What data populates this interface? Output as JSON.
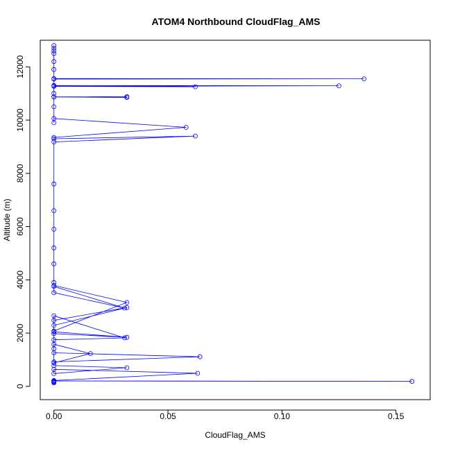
{
  "chart_data": {
    "type": "scatter",
    "title": "ATOM4 Northbound CloudFlag_AMS",
    "xlabel": "CloudFlag_AMS",
    "ylabel": "Altitude (m)",
    "xlim": [
      -0.006,
      0.165
    ],
    "ylim": [
      -500,
      13000
    ],
    "x_ticks": [
      0.0,
      0.05,
      0.1,
      0.15
    ],
    "x_tick_labels": [
      "0.00",
      "0.05",
      "0.10",
      "0.15"
    ],
    "y_ticks": [
      0,
      2000,
      4000,
      6000,
      8000,
      10000,
      12000
    ],
    "y_tick_labels": [
      "0",
      "2000",
      "4000",
      "6000",
      "8000",
      "10000",
      "12000"
    ],
    "grid": false,
    "legend": "none",
    "colors": {
      "points": "#0000ff",
      "lines": "#0000ff",
      "axes": "#000000"
    },
    "series": [
      {
        "x": [
          0,
          0,
          0,
          0,
          0,
          0,
          0,
          0.157,
          0,
          0,
          0.063,
          0,
          0,
          0.032,
          0,
          0,
          0.064,
          0,
          0,
          0,
          0.016,
          0,
          0,
          0.032,
          0,
          0,
          0.031,
          0,
          0,
          0.032,
          0,
          0,
          0.032,
          0,
          0,
          0.031,
          0,
          0,
          0,
          0,
          0,
          0,
          0,
          0,
          0.062,
          0,
          0,
          0.058,
          0,
          0,
          0,
          0,
          0.032,
          0.032,
          0,
          0,
          0,
          0.062,
          0,
          0.125,
          0,
          0,
          0.136,
          0,
          0,
          0,
          0,
          0,
          0,
          0
        ],
        "y": [
          130,
          160,
          185,
          200,
          210,
          190,
          205,
          185,
          200,
          220,
          490,
          640,
          480,
          700,
          780,
          920,
          1110,
          1260,
          1410,
          1580,
          1230,
          880,
          1980,
          1840,
          2050,
          2650,
          1820,
          1750,
          2290,
          2960,
          2480,
          2080,
          3150,
          3790,
          3520,
          2940,
          3750,
          3900,
          4600,
          5200,
          5900,
          6600,
          7600,
          9180,
          9400,
          9300,
          9350,
          9730,
          10060,
          9900,
          10500,
          10870,
          10880,
          10850,
          10870,
          11000,
          11280,
          11250,
          11270,
          11290,
          11300,
          11540,
          11550,
          11560,
          11900,
          12200,
          12500,
          12700,
          12800,
          12600
        ]
      }
    ]
  }
}
